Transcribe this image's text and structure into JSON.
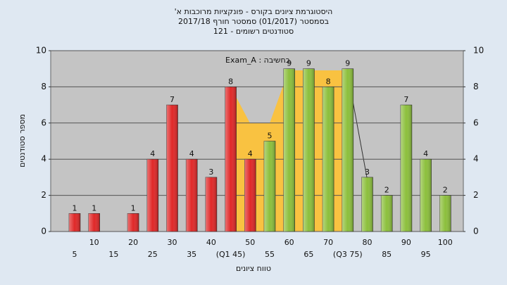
{
  "chart_data": {
    "type": "bar",
    "title": "היסטוגרמת ציונים בקורס - פונקציות מרוכבות א'",
    "subtitle": [
      "בסמסטר  (01/2017)  סמסטר חורף 2017/18",
      "סטודנטים רשומים - 121"
    ],
    "legend_label": "Exam_A : בחשיבה",
    "x_label": "טווח ציונים",
    "y_label": "מספר סטודנטים",
    "categories": [
      "5",
      "10",
      "15",
      "20",
      "25",
      "30",
      "35",
      "40",
      "(Q1 45)",
      "50",
      "55",
      "60",
      "65",
      "70",
      "(Q3 75)",
      "80",
      "85",
      "90",
      "95",
      "100"
    ],
    "values": [
      1,
      1,
      null,
      1,
      4,
      7,
      4,
      3,
      8,
      4,
      5,
      9,
      9,
      8,
      9,
      3,
      2,
      7,
      4,
      2
    ],
    "bar_colors": [
      "#e02828",
      "#e02828",
      "#e02828",
      "#e02828",
      "#e02828",
      "#e02828",
      "#e02828",
      "#e02828",
      "#e02828",
      "#e02828",
      "#8cbf3c",
      "#8cbf3c",
      "#8cbf3c",
      "#8cbf3c",
      "#8cbf3c",
      "#8cbf3c",
      "#8cbf3c",
      "#8cbf3c",
      "#8cbf3c",
      "#8cbf3c"
    ],
    "ylim": [
      0,
      10
    ],
    "yticks": [
      0,
      2,
      4,
      6,
      8,
      10
    ],
    "grid": true
  }
}
